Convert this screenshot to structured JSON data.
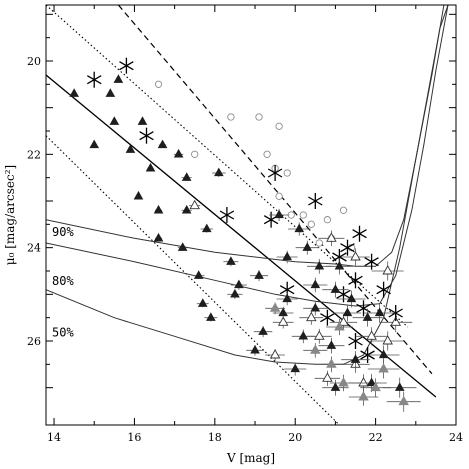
{
  "chart_data": {
    "type": "scatter",
    "title": "",
    "xlabel": "V [mag]",
    "ylabel": "μ₀ [mag/arcsec²]",
    "xlim": [
      13.8,
      24.0
    ],
    "ylim": [
      27.8,
      18.8
    ],
    "y_inverted": true,
    "grid": false,
    "legend": "none",
    "x_ticks": [
      "14",
      "16",
      "18",
      "20",
      "22",
      "24"
    ],
    "y_ticks": [
      "20",
      "22",
      "24",
      "26"
    ],
    "colors": {
      "field": "#9a9a9a",
      "open": "#8c8c8c",
      "filled": "#1e1e1e",
      "gray_tri": "#888888",
      "curve": "#333333"
    },
    "annotations": [
      {
        "text": "90%",
        "x": 13.95,
        "y": 23.75
      },
      {
        "text": "80%",
        "x": 13.95,
        "y": 24.8
      },
      {
        "text": "50%",
        "x": 13.95,
        "y": 25.9
      }
    ],
    "lines": {
      "solid_fit": [
        [
          13.8,
          20.3
        ],
        [
          23.5,
          27.2
        ]
      ],
      "dashed": [
        [
          15.6,
          18.8
        ],
        [
          23.4,
          26.7
        ]
      ],
      "dotted_upper": [
        [
          13.8,
          18.8
        ],
        [
          22.8,
          25.7
        ]
      ],
      "dotted_lower": [
        [
          13.8,
          21.6
        ],
        [
          21.1,
          27.8
        ]
      ],
      "completeness_90": [
        [
          13.8,
          23.4
        ],
        [
          16,
          23.8
        ],
        [
          18,
          24.1
        ],
        [
          20,
          24.3
        ],
        [
          21,
          24.35
        ],
        [
          21.5,
          24.4
        ],
        [
          22,
          24.4
        ],
        [
          22.4,
          24.1
        ],
        [
          22.7,
          23.4
        ],
        [
          23,
          22.1
        ],
        [
          23.3,
          20.7
        ],
        [
          23.6,
          19.3
        ],
        [
          23.8,
          18.8
        ]
      ],
      "completeness_80": [
        [
          13.8,
          23.9
        ],
        [
          16,
          24.3
        ],
        [
          18,
          24.7
        ],
        [
          19.5,
          25.0
        ],
        [
          20.5,
          25.15
        ],
        [
          21.5,
          25.25
        ],
        [
          22.1,
          25.2
        ],
        [
          22.5,
          24.6
        ],
        [
          22.9,
          23.2
        ],
        [
          23.2,
          21.8
        ],
        [
          23.5,
          20.2
        ],
        [
          23.8,
          18.8
        ]
      ],
      "completeness_50": [
        [
          13.8,
          24.9
        ],
        [
          15.5,
          25.5
        ],
        [
          17,
          25.9
        ],
        [
          18.5,
          26.3
        ],
        [
          19.5,
          26.45
        ],
        [
          20.5,
          26.5
        ],
        [
          21.2,
          26.5
        ],
        [
          21.7,
          26.3
        ],
        [
          22.2,
          25.5
        ],
        [
          22.6,
          24.0
        ],
        [
          23.0,
          22.1
        ],
        [
          23.4,
          20.3
        ],
        [
          23.7,
          18.8
        ]
      ]
    },
    "series": [
      {
        "marker": "open-circle",
        "points": [
          [
            16.6,
            20.5
          ],
          [
            18.4,
            21.2
          ],
          [
            19.1,
            21.2
          ],
          [
            19.6,
            21.4
          ],
          [
            19.3,
            22.0
          ],
          [
            19.5,
            22.3
          ],
          [
            19.8,
            22.4
          ],
          [
            19.6,
            22.9
          ],
          [
            19.9,
            23.3
          ],
          [
            20.2,
            23.3
          ],
          [
            20.4,
            23.5
          ],
          [
            20.6,
            23.9
          ],
          [
            20.8,
            23.4
          ],
          [
            20.9,
            23.8
          ],
          [
            21.2,
            23.2
          ],
          [
            21.4,
            24.0
          ],
          [
            17.5,
            22.0
          ]
        ]
      },
      {
        "marker": "open-triangle",
        "points": [
          [
            17.5,
            23.1
          ],
          [
            20.9,
            23.8
          ],
          [
            21.5,
            24.2
          ],
          [
            22.3,
            24.5
          ],
          [
            20.4,
            25.5
          ],
          [
            21.2,
            25.6
          ],
          [
            19.7,
            25.6
          ],
          [
            20.6,
            25.9
          ],
          [
            21.9,
            25.9
          ],
          [
            19.5,
            26.3
          ],
          [
            21.5,
            26.5
          ],
          [
            20.8,
            26.8
          ],
          [
            21.7,
            26.9
          ],
          [
            22.3,
            26.0
          ],
          [
            22.5,
            25.6
          ]
        ]
      },
      {
        "marker": "asterisk",
        "points": [
          [
            15.0,
            20.4
          ],
          [
            15.8,
            20.1
          ],
          [
            16.3,
            21.6
          ],
          [
            19.5,
            22.4
          ],
          [
            20.5,
            23.0
          ],
          [
            18.3,
            23.3
          ],
          [
            19.4,
            23.4
          ],
          [
            21.6,
            23.7
          ],
          [
            21.3,
            24.0
          ],
          [
            21.1,
            24.2
          ],
          [
            21.9,
            24.3
          ],
          [
            19.8,
            24.9
          ],
          [
            21.5,
            24.7
          ],
          [
            22.2,
            24.9
          ],
          [
            21.2,
            25.0
          ],
          [
            21.7,
            25.3
          ],
          [
            20.8,
            25.5
          ],
          [
            22.5,
            25.4
          ],
          [
            21.5,
            26.0
          ],
          [
            21.8,
            26.3
          ]
        ]
      },
      {
        "marker": "filled-triangle",
        "points": [
          [
            14.5,
            20.7
          ],
          [
            15.4,
            20.7
          ],
          [
            15.6,
            20.4
          ],
          [
            15.5,
            21.3
          ],
          [
            16.2,
            21.3
          ],
          [
            16.7,
            21.8
          ],
          [
            15.0,
            21.8
          ],
          [
            15.9,
            21.9
          ],
          [
            16.4,
            22.3
          ],
          [
            17.3,
            22.5
          ],
          [
            17.1,
            22.0
          ],
          [
            18.1,
            22.4
          ],
          [
            16.1,
            22.9
          ],
          [
            16.6,
            23.2
          ],
          [
            17.3,
            23.2
          ],
          [
            17.8,
            23.6
          ],
          [
            16.6,
            23.8
          ],
          [
            17.2,
            24.0
          ],
          [
            18.4,
            24.3
          ],
          [
            17.6,
            24.6
          ],
          [
            18.6,
            24.8
          ],
          [
            19.6,
            23.3
          ],
          [
            20.1,
            23.6
          ],
          [
            20.3,
            24.0
          ],
          [
            19.8,
            24.2
          ],
          [
            20.6,
            24.4
          ],
          [
            21.1,
            24.4
          ],
          [
            19.1,
            24.6
          ],
          [
            19.8,
            25.1
          ],
          [
            20.5,
            24.8
          ],
          [
            21.0,
            24.9
          ],
          [
            21.4,
            25.1
          ],
          [
            18.5,
            25.0
          ],
          [
            19.7,
            25.4
          ],
          [
            20.5,
            25.3
          ],
          [
            21.3,
            25.4
          ],
          [
            21.8,
            25.5
          ],
          [
            22.1,
            25.4
          ],
          [
            19.2,
            25.8
          ],
          [
            20.2,
            25.9
          ],
          [
            20.9,
            26.1
          ],
          [
            21.5,
            26.4
          ],
          [
            22.2,
            26.3
          ],
          [
            20.0,
            26.6
          ],
          [
            21.0,
            27.0
          ],
          [
            22.6,
            27.0
          ],
          [
            17.7,
            25.2
          ],
          [
            17.9,
            25.5
          ],
          [
            19.0,
            26.2
          ],
          [
            21.9,
            26.9
          ]
        ]
      },
      {
        "marker": "gray-triangle",
        "points": [
          [
            21.1,
            25.7
          ],
          [
            20.9,
            26.5
          ],
          [
            21.2,
            26.9
          ],
          [
            22.0,
            27.0
          ],
          [
            22.2,
            26.6
          ],
          [
            21.7,
            27.2
          ],
          [
            22.7,
            27.3
          ],
          [
            20.5,
            26.2
          ],
          [
            19.5,
            25.3
          ]
        ]
      }
    ]
  }
}
